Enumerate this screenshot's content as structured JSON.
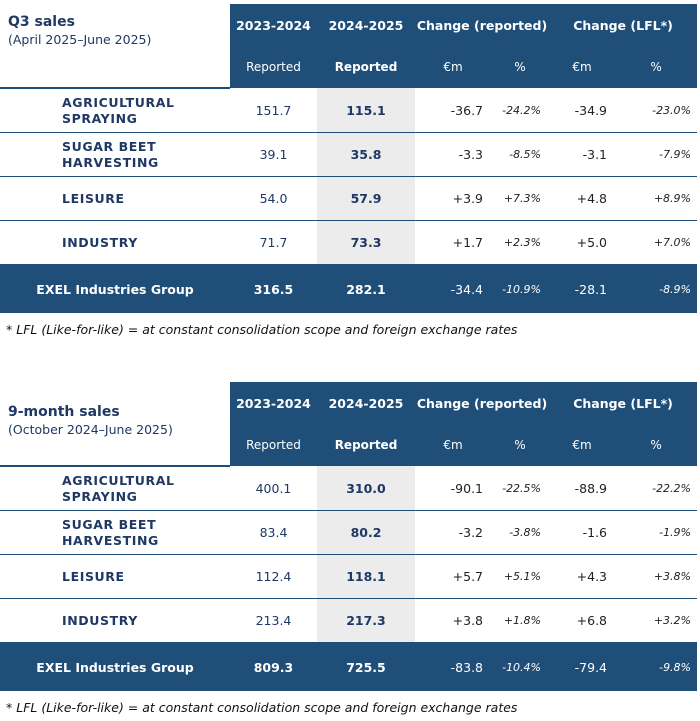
{
  "header": {
    "year_prev": "2023-2024",
    "year_curr": "2024-2025",
    "change_reported": "Change (reported)",
    "change_lfl": "Change (LFL*)",
    "reported": "Reported",
    "eur_m": "€m",
    "pct": "%"
  },
  "q3": {
    "title": "Q3 sales",
    "subtitle": "(April 2025–June 2025)",
    "rows": [
      {
        "name_line1": "AGRICULTURAL",
        "name_line2": "SPRAYING",
        "prev": "151.7",
        "curr": "115.1",
        "rep_eur": "-36.7",
        "rep_pct": "-24.2%",
        "lfl_eur": "-34.9",
        "lfl_pct": "-23.0%"
      },
      {
        "name_line1": "SUGAR BEET",
        "name_line2": "HARVESTING",
        "prev": "39.1",
        "curr": "35.8",
        "rep_eur": "-3.3",
        "rep_pct": "-8.5%",
        "lfl_eur": "-3.1",
        "lfl_pct": "-7.9%"
      },
      {
        "name_line1": "LEISURE",
        "name_line2": "",
        "prev": "54.0",
        "curr": "57.9",
        "rep_eur": "+3.9",
        "rep_pct": "+7.3%",
        "lfl_eur": "+4.8",
        "lfl_pct": "+8.9%"
      },
      {
        "name_line1": "INDUSTRY",
        "name_line2": "",
        "prev": "71.7",
        "curr": "73.3",
        "rep_eur": "+1.7",
        "rep_pct": "+2.3%",
        "lfl_eur": "+5.0",
        "lfl_pct": "+7.0%"
      }
    ],
    "total": {
      "name": "EXEL Industries Group",
      "prev": "316.5",
      "curr": "282.1",
      "rep_eur": "-34.4",
      "rep_pct": "-10.9%",
      "lfl_eur": "-28.1",
      "lfl_pct": "-8.9%"
    },
    "footnote": "* LFL (Like-for-like) = at constant consolidation scope and foreign exchange rates"
  },
  "nine_month": {
    "title": "9-month sales",
    "subtitle": "(October 2024–June 2025)",
    "rows": [
      {
        "name_line1": "AGRICULTURAL",
        "name_line2": "SPRAYING",
        "prev": "400.1",
        "curr": "310.0",
        "rep_eur": "-90.1",
        "rep_pct": "-22.5%",
        "lfl_eur": "-88.9",
        "lfl_pct": "-22.2%"
      },
      {
        "name_line1": "SUGAR BEET",
        "name_line2": "HARVESTING",
        "prev": "83.4",
        "curr": "80.2",
        "rep_eur": "-3.2",
        "rep_pct": "-3.8%",
        "lfl_eur": "-1.6",
        "lfl_pct": "-1.9%"
      },
      {
        "name_line1": "LEISURE",
        "name_line2": "",
        "prev": "112.4",
        "curr": "118.1",
        "rep_eur": "+5.7",
        "rep_pct": "+5.1%",
        "lfl_eur": "+4.3",
        "lfl_pct": "+3.8%"
      },
      {
        "name_line1": "INDUSTRY",
        "name_line2": "",
        "prev": "213.4",
        "curr": "217.3",
        "rep_eur": "+3.8",
        "rep_pct": "+1.8%",
        "lfl_eur": "+6.8",
        "lfl_pct": "+3.2%"
      }
    ],
    "total": {
      "name": "EXEL Industries Group",
      "prev": "809.3",
      "curr": "725.5",
      "rep_eur": "-83.8",
      "rep_pct": "-10.4%",
      "lfl_eur": "-79.4",
      "lfl_pct": "-9.8%"
    },
    "footnote": "* LFL (Like-for-like) = at constant consolidation scope and foreign exchange rates"
  }
}
